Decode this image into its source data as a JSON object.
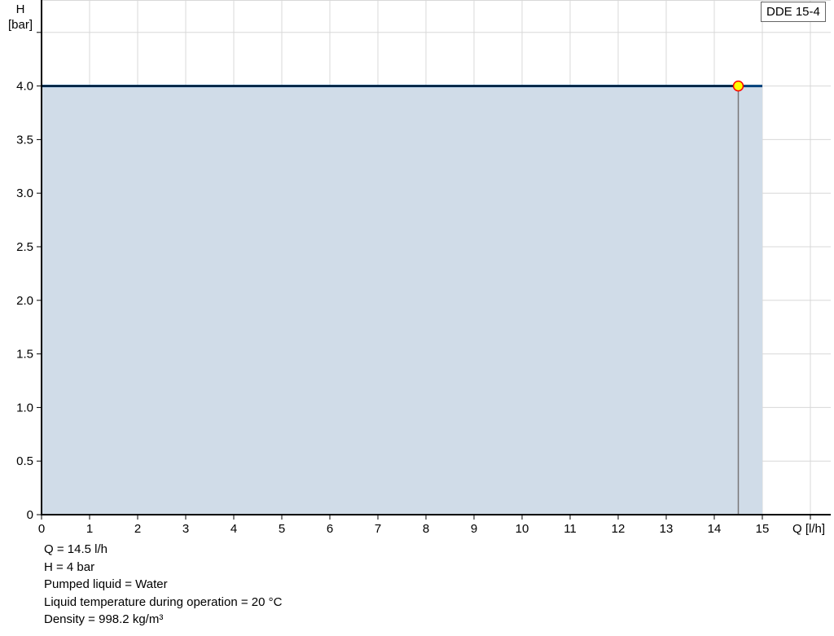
{
  "chart_data": {
    "type": "area",
    "xlabel": "Q [l/h]",
    "ylabel_line1": "H",
    "ylabel_line2": "[bar]",
    "xlim": [
      0,
      16
    ],
    "ylim": [
      0,
      4.5
    ],
    "x_ticks": [
      0,
      1,
      2,
      3,
      4,
      5,
      6,
      7,
      8,
      9,
      10,
      11,
      12,
      13,
      14,
      15
    ],
    "y_ticks": [
      "0",
      "0.5",
      "1.0",
      "1.5",
      "2.0",
      "2.5",
      "3.0",
      "3.5",
      "4.0"
    ],
    "grid": true,
    "series": [
      {
        "name": "DDE 15-4",
        "x": [
          0,
          15
        ],
        "y": [
          4.0,
          4.0
        ],
        "color": "#00407a",
        "fill": "#d0dce8"
      }
    ],
    "operating_point": {
      "x": 14.5,
      "y": 4.0,
      "fill": "#ffff00",
      "stroke": "#ff0000"
    },
    "legend": {
      "label": "DDE 15-4",
      "placement": "top-right"
    }
  },
  "info": [
    "Q = 14.5 l/h",
    "H = 4 bar",
    "Pumped liquid = Water",
    "Liquid temperature during operation = 20 °C",
    "Density = 998.2 kg/m³"
  ]
}
